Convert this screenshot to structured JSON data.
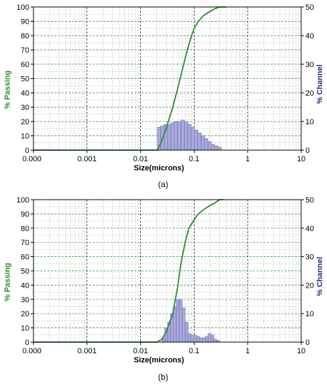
{
  "chart_data": [
    {
      "type": "bar+line",
      "caption": "(a)",
      "xlabel": "Size(microns)",
      "ylabel_left": "% Passing",
      "ylabel_right": "% Channel",
      "x_scale": "log",
      "xlim": [
        0.0001,
        10
      ],
      "x_ticks": [
        "0.000",
        "0.001",
        "0.01",
        "0.1",
        "1",
        "10"
      ],
      "x_tick_values": [
        0.0001,
        0.001,
        0.01,
        0.1,
        1,
        10
      ],
      "ylim_left": [
        0,
        100
      ],
      "y_ticks_left": [
        "0",
        "10",
        "20",
        "30",
        "40",
        "50",
        "60",
        "70",
        "80",
        "90",
        "100"
      ],
      "ylim_right": [
        0,
        50
      ],
      "y_ticks_right": [
        "0",
        "10",
        "20",
        "30",
        "40",
        "50"
      ],
      "grid": true,
      "colors": {
        "line": "#2e8b2e",
        "bar_fill": "#a9a9dc",
        "bar_edge": "#6a6aa8",
        "major_grid": "#000000",
        "minor_grid": "#b0b0b0",
        "green_grid": "#2e8b2e"
      },
      "series": [
        {
          "name": "% Passing",
          "kind": "line",
          "x": [
            0.0001,
            0.001,
            0.01,
            0.0205,
            0.024,
            0.03,
            0.04,
            0.05,
            0.06,
            0.07,
            0.08,
            0.09,
            0.1,
            0.12,
            0.15,
            0.2,
            0.25,
            0.3,
            0.35,
            0.4
          ],
          "y": [
            0,
            0,
            0,
            0,
            5,
            15,
            30,
            44,
            56,
            66,
            74,
            80,
            85,
            90,
            94,
            97,
            99,
            100,
            100,
            100
          ]
        },
        {
          "name": "% Channel",
          "kind": "bar",
          "x": [
            0.0222,
            0.0256,
            0.0296,
            0.0342,
            0.0396,
            0.0457,
            0.0528,
            0.0611,
            0.0706,
            0.0816,
            0.0943,
            0.109,
            0.126,
            0.146,
            0.168,
            0.195,
            0.225,
            0.26,
            0.3
          ],
          "y": [
            8,
            8.5,
            9,
            9,
            9.5,
            10,
            10,
            10.5,
            10,
            9,
            8,
            7,
            6,
            5,
            4,
            3,
            2,
            1.5,
            1
          ]
        }
      ]
    },
    {
      "type": "bar+line",
      "caption": "(b)",
      "xlabel": "Size(microns)",
      "ylabel_left": "% Passing",
      "ylabel_right": "% Channel",
      "x_scale": "log",
      "xlim": [
        0.0001,
        10
      ],
      "x_ticks": [
        "0.000",
        "0.001",
        "0.01",
        "0.1",
        "1",
        "10"
      ],
      "x_tick_values": [
        0.0001,
        0.001,
        0.01,
        0.1,
        1,
        10
      ],
      "ylim_left": [
        0,
        100
      ],
      "y_ticks_left": [
        "0",
        "10",
        "20",
        "30",
        "40",
        "50",
        "60",
        "70",
        "80",
        "90",
        "100"
      ],
      "ylim_right": [
        0,
        50
      ],
      "y_ticks_right": [
        "0",
        "10",
        "20",
        "30",
        "40",
        "50"
      ],
      "grid": true,
      "colors": {
        "line": "#2e8b2e",
        "bar_fill": "#a9a9dc",
        "bar_edge": "#6a6aa8",
        "major_grid": "#000000",
        "minor_grid": "#b0b0b0",
        "green_grid": "#2e8b2e"
      },
      "series": [
        {
          "name": "% Passing",
          "kind": "line",
          "x": [
            0.0001,
            0.001,
            0.01,
            0.02,
            0.025,
            0.03,
            0.04,
            0.05,
            0.055,
            0.06,
            0.07,
            0.08,
            0.1,
            0.12,
            0.15,
            0.2,
            0.25,
            0.3,
            0.35
          ],
          "y": [
            0,
            0,
            0,
            0,
            2,
            7,
            20,
            40,
            52,
            60,
            72,
            80,
            86,
            90,
            93,
            96,
            98,
            100,
            100
          ]
        },
        {
          "name": "% Channel",
          "kind": "bar",
          "x": [
            0.0267,
            0.0302,
            0.0342,
            0.0387,
            0.0438,
            0.0496,
            0.0562,
            0.0636,
            0.072,
            0.0815,
            0.0923,
            0.105,
            0.119,
            0.134,
            0.152,
            0.172,
            0.195,
            0.221,
            0.25,
            0.283
          ],
          "y": [
            1.5,
            5,
            7,
            10,
            12.5,
            15,
            15,
            12,
            7,
            3,
            2.5,
            2.5,
            2,
            1.5,
            1.5,
            2,
            3,
            2.5,
            1,
            0.5
          ]
        }
      ]
    }
  ]
}
